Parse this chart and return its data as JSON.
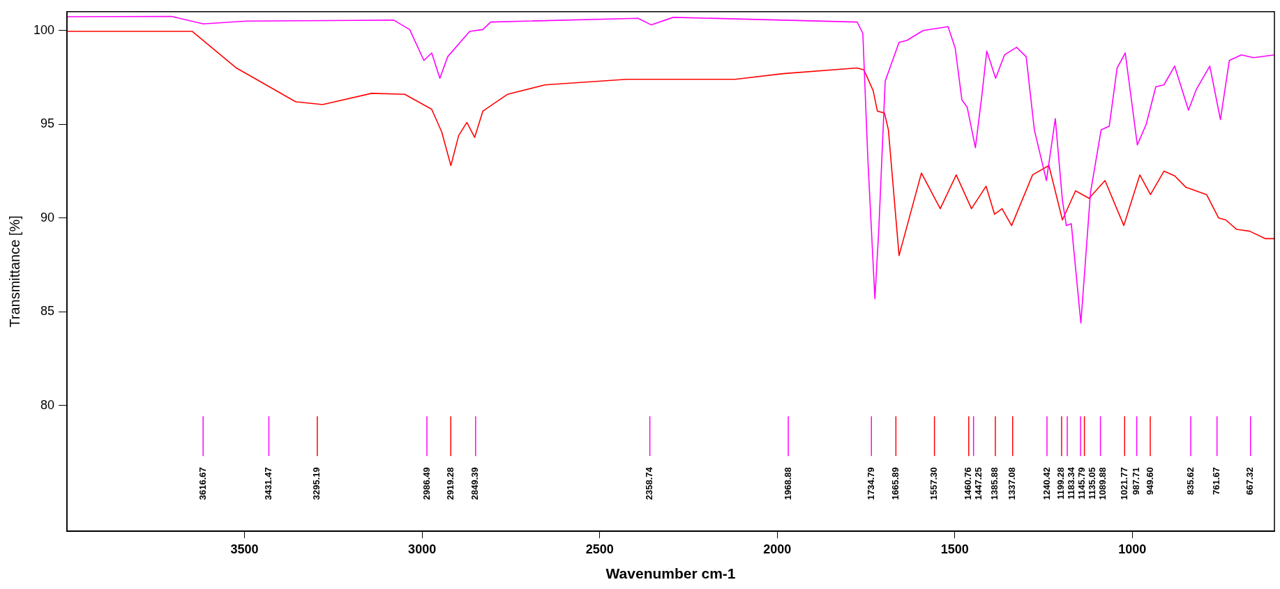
{
  "chart_data": {
    "type": "line",
    "xlabel": "Wavenumber cm-1",
    "ylabel": "Transmittance [%]",
    "xlim": [
      4000,
      600
    ],
    "xticks": [
      3500,
      3000,
      2500,
      2000,
      1500,
      1000
    ],
    "ylim": [
      73.3,
      101
    ],
    "yticks": [
      80,
      85,
      90,
      95,
      100
    ],
    "grid": false,
    "legend": false,
    "series": [
      {
        "color": "#ff00ff",
        "x": [
          4000,
          3706,
          3616,
          3495,
          3080,
          3035,
          2995,
          2973,
          2950,
          2928,
          2866,
          2829,
          2807,
          2392,
          2355,
          2293,
          1775,
          1759,
          1745,
          1725,
          1714,
          1696,
          1657,
          1635,
          1589,
          1519,
          1499,
          1480,
          1465,
          1442,
          1424,
          1410,
          1385,
          1360,
          1326,
          1299,
          1276,
          1242,
          1217,
          1197,
          1186,
          1172,
          1145,
          1118,
          1088,
          1065,
          1043,
          1020,
          986,
          961,
          934,
          911,
          881,
          842,
          820,
          782,
          752,
          727,
          693,
          659,
          600
        ],
        "values": [
          100.73,
          100.75,
          100.35,
          100.5,
          100.55,
          100.05,
          98.4,
          98.8,
          97.45,
          98.6,
          99.95,
          100.05,
          100.45,
          100.65,
          100.3,
          100.7,
          100.45,
          99.85,
          93.2,
          85.7,
          89.4,
          97.3,
          99.37,
          99.47,
          100.0,
          100.2,
          99.07,
          96.3,
          95.9,
          93.75,
          96.5,
          98.9,
          97.45,
          98.7,
          99.1,
          98.6,
          94.7,
          92.0,
          95.3,
          90.95,
          89.6,
          89.7,
          84.4,
          91.35,
          94.7,
          94.9,
          98.0,
          98.8,
          93.9,
          95.0,
          97.0,
          97.1,
          98.1,
          95.75,
          96.85,
          98.1,
          95.25,
          98.4,
          98.7,
          98.55,
          98.7
        ]
      },
      {
        "color": "#ff0000",
        "x": [
          4000,
          3647,
          3523,
          3356,
          3280,
          3142,
          3049,
          2973,
          2945,
          2919,
          2897,
          2874,
          2852,
          2829,
          2759,
          2654,
          2423,
          2118,
          1983,
          1775,
          1756,
          1730,
          1718,
          1698,
          1687,
          1657,
          1594,
          1541,
          1496,
          1453,
          1412,
          1388,
          1367,
          1340,
          1281,
          1235,
          1197,
          1160,
          1122,
          1077,
          1024,
          979,
          949,
          911,
          881,
          850,
          791,
          757,
          737,
          707,
          670,
          625,
          600
        ],
        "values": [
          99.95,
          99.95,
          98.0,
          96.2,
          96.05,
          96.65,
          96.6,
          95.8,
          94.6,
          92.8,
          94.4,
          95.1,
          94.3,
          95.7,
          96.6,
          97.1,
          97.4,
          97.4,
          97.7,
          98.0,
          97.9,
          96.8,
          95.7,
          95.6,
          94.7,
          88.0,
          92.4,
          90.5,
          92.3,
          90.5,
          91.7,
          90.2,
          90.5,
          89.6,
          92.3,
          92.8,
          89.9,
          91.45,
          91.05,
          92.0,
          89.6,
          92.3,
          91.25,
          92.5,
          92.25,
          91.65,
          91.25,
          90.0,
          89.9,
          89.4,
          89.3,
          88.9,
          88.9
        ]
      }
    ],
    "ref_lines": [
      {
        "axis": "x",
        "value": 3616.67,
        "label": "3616.67",
        "color": "#ff00ff"
      },
      {
        "axis": "x",
        "value": 3431.47,
        "label": "3431.47",
        "color": "#ff00ff"
      },
      {
        "axis": "x",
        "value": 3295.19,
        "label": "3295.19",
        "color": "#ff0000"
      },
      {
        "axis": "x",
        "value": 2986.49,
        "label": "2986.49",
        "color": "#ff00ff"
      },
      {
        "axis": "x",
        "value": 2919.28,
        "label": "2919.28",
        "color": "#ff0000"
      },
      {
        "axis": "x",
        "value": 2849.39,
        "label": "2849.39",
        "color": "#ff00ff"
      },
      {
        "axis": "x",
        "value": 2358.74,
        "label": "2358.74",
        "color": "#ff00ff"
      },
      {
        "axis": "x",
        "value": 1968.88,
        "label": "1968.88",
        "color": "#ff00ff"
      },
      {
        "axis": "x",
        "value": 1734.79,
        "label": "1734.79",
        "color": "#ff00ff"
      },
      {
        "axis": "x",
        "value": 1665.89,
        "label": "1665.89",
        "color": "#ff0000"
      },
      {
        "axis": "x",
        "value": 1557.3,
        "label": "1557.30",
        "color": "#ff0000"
      },
      {
        "axis": "x",
        "value": 1460.76,
        "label": "1460.76",
        "color": "#ff0000"
      },
      {
        "axis": "x",
        "value": 1447.25,
        "label": "1447.25",
        "color": "#ff00ff"
      },
      {
        "axis": "x",
        "value": 1385.88,
        "label": "1385.88",
        "color": "#ff0000"
      },
      {
        "axis": "x",
        "value": 1337.08,
        "label": "1337.08",
        "color": "#ff0000"
      },
      {
        "axis": "x",
        "value": 1240.42,
        "label": "1240.42",
        "color": "#ff00ff"
      },
      {
        "axis": "x",
        "value": 1199.28,
        "label": "1199.28",
        "color": "#ff0000"
      },
      {
        "axis": "x",
        "value": 1183.34,
        "label": "1183.34",
        "color": "#ff00ff"
      },
      {
        "axis": "x",
        "value": 1145.79,
        "label": "1145.79",
        "color": "#ff00ff"
      },
      {
        "axis": "x",
        "value": 1135.05,
        "label": "1135.05",
        "color": "#ff0000"
      },
      {
        "axis": "x",
        "value": 1089.88,
        "label": "1089.88",
        "color": "#ff00ff"
      },
      {
        "axis": "x",
        "value": 1021.77,
        "label": "1021.77",
        "color": "#ff0000"
      },
      {
        "axis": "x",
        "value": 987.71,
        "label": "987.71",
        "color": "#ff00ff"
      },
      {
        "axis": "x",
        "value": 949.6,
        "label": "949.60",
        "color": "#ff0000"
      },
      {
        "axis": "x",
        "value": 835.62,
        "label": "835.62",
        "color": "#ff00ff"
      },
      {
        "axis": "x",
        "value": 761.67,
        "label": "761.67",
        "color": "#ff00ff"
      },
      {
        "axis": "x",
        "value": 667.32,
        "label": "667.32",
        "color": "#ff00ff"
      }
    ]
  }
}
